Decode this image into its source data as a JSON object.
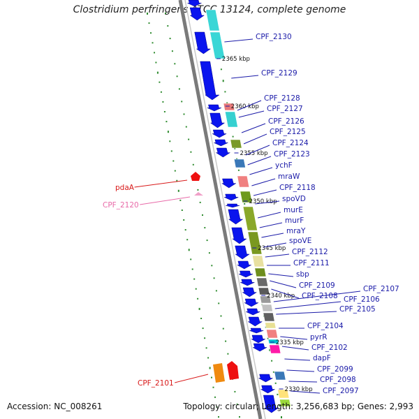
{
  "title": "Clostridium perfringens ATCC 13124, complete genome",
  "accession": "Accession: NC_008261",
  "summary": "Topology: circular; Length: 3,256,683 bp; Genes: 2,993",
  "colors": {
    "backbone": "#7a7a7a",
    "strand_arrow": "#0a14ee",
    "label_right": "#1a1aa8",
    "label_left_red": "#d81818",
    "label_left_pink": "#e86aa8",
    "gc_skew_dots": "#2e8b2e"
  },
  "ticks": [
    "2365 kbp",
    "2360 kbp",
    "2355 kbp",
    "2350 kbp",
    "2345 kbp",
    "2340 kbp",
    "2335 kbp",
    "2330 kbp"
  ],
  "genes_right": [
    "CPF_2130",
    "CPF_2129",
    "CPF_2128",
    "CPF_2127",
    "CPF_2126",
    "CPF_2125",
    "CPF_2124",
    "CPF_2123",
    "ychF",
    "mraW",
    "CPF_2118",
    "spoVD",
    "murE",
    "murF",
    "mraY",
    "spoVE",
    "CPF_2112",
    "CPF_2111",
    "sbp",
    "CPF_2109",
    "CPF_2108",
    "CPF_2107",
    "CPF_2106",
    "CPF_2105",
    "CPF_2104",
    "pyrR",
    "CPF_2102",
    "dapF",
    "CPF_2099",
    "CPF_2098",
    "CPF_2097"
  ],
  "genes_left": [
    "pdaA",
    "CPF_2120",
    "CPF_2101"
  ]
}
